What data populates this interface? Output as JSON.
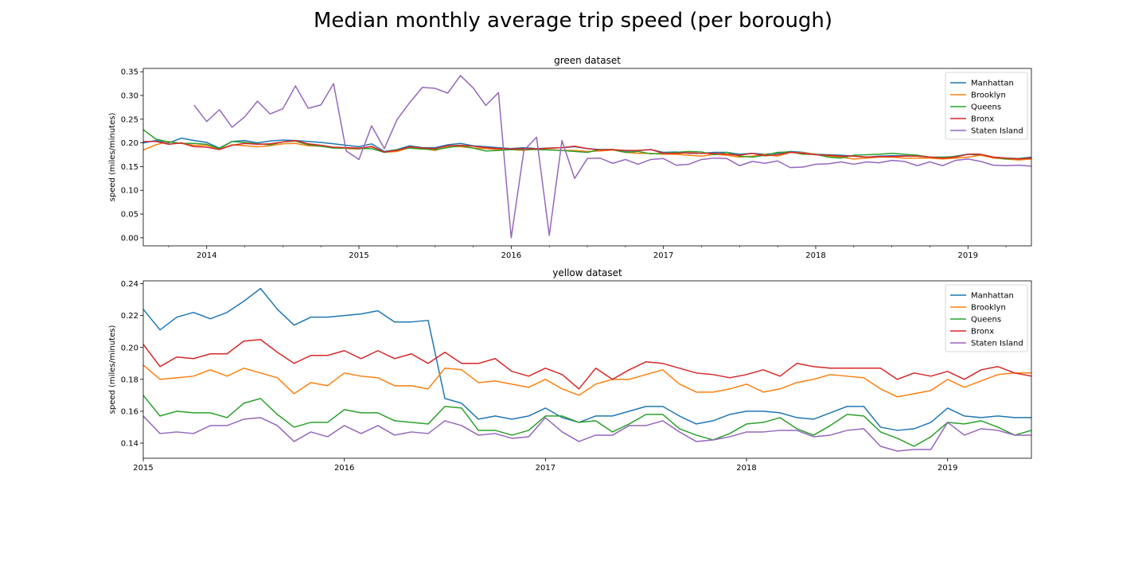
{
  "figure_title": "Median monthly average trip speed (per borough)",
  "colors": {
    "Manhattan": "#1f77b4",
    "Brooklyn": "#ff7f0e",
    "Queens": "#2ca02c",
    "Bronx": "#d62728",
    "Staten Island": "#9467bd"
  },
  "chart_data": [
    {
      "type": "line",
      "title": "green dataset",
      "xlabel": "",
      "ylabel": "speed (miles/minutes)",
      "x_start": "2013-08",
      "xlim": [
        "2013-08",
        "2019-06"
      ],
      "ylim": [
        -0.017,
        0.357
      ],
      "yticks": [
        "0.00",
        "0.05",
        "0.10",
        "0.15",
        "0.20",
        "0.25",
        "0.30",
        "0.35"
      ],
      "xticks": [
        "2014",
        "2015",
        "2016",
        "2017",
        "2018",
        "2019"
      ],
      "grid": false,
      "legend": "top-right",
      "series": [
        {
          "name": "Manhattan",
          "values": [
            0.2,
            0.205,
            0.2,
            0.21,
            0.205,
            0.201,
            0.189,
            0.203,
            0.205,
            0.2,
            0.204,
            0.206,
            0.205,
            0.203,
            0.201,
            0.198,
            0.195,
            0.192,
            0.198,
            0.182,
            0.186,
            0.194,
            0.19,
            0.19,
            0.196,
            0.199,
            0.194,
            0.192,
            0.19,
            0.188,
            0.19,
            0.188,
            0.189,
            0.19,
            0.192,
            0.188,
            0.186,
            0.186,
            0.183,
            0.184,
            0.186,
            0.18,
            0.181,
            0.178,
            0.178,
            0.18,
            0.18,
            0.176,
            0.178,
            0.176,
            0.178,
            0.182,
            0.18,
            0.176,
            0.175,
            0.174,
            0.172,
            0.17,
            0.172,
            0.173,
            0.173,
            0.172,
            0.17,
            0.168,
            0.172,
            0.176,
            0.174,
            0.17,
            0.168,
            0.167,
            0.17,
            0.17,
            0.176,
            0.174,
            0.17,
            0.167,
            0.163
          ]
        },
        {
          "name": "Brooklyn",
          "values": [
            0.185,
            0.196,
            0.203,
            0.199,
            0.195,
            0.195,
            0.187,
            0.196,
            0.194,
            0.192,
            0.194,
            0.198,
            0.199,
            0.194,
            0.193,
            0.19,
            0.188,
            0.187,
            0.193,
            0.18,
            0.182,
            0.19,
            0.188,
            0.184,
            0.192,
            0.192,
            0.189,
            0.188,
            0.186,
            0.186,
            0.184,
            0.188,
            0.186,
            0.184,
            0.184,
            0.182,
            0.183,
            0.185,
            0.18,
            0.178,
            0.178,
            0.176,
            0.176,
            0.174,
            0.172,
            0.176,
            0.174,
            0.17,
            0.172,
            0.176,
            0.172,
            0.18,
            0.179,
            0.176,
            0.172,
            0.17,
            0.166,
            0.168,
            0.17,
            0.17,
            0.168,
            0.168,
            0.168,
            0.166,
            0.168,
            0.17,
            0.174,
            0.168,
            0.166,
            0.164,
            0.166,
            0.165,
            0.167,
            0.163,
            0.162,
            0.16,
            0.155,
            0.155,
            0.158
          ]
        },
        {
          "name": "Queens",
          "values": [
            0.228,
            0.208,
            0.202,
            0.199,
            0.199,
            0.197,
            0.188,
            0.203,
            0.201,
            0.198,
            0.196,
            0.202,
            0.204,
            0.196,
            0.193,
            0.189,
            0.189,
            0.188,
            0.188,
            0.18,
            0.186,
            0.189,
            0.187,
            0.186,
            0.19,
            0.194,
            0.189,
            0.183,
            0.184,
            0.186,
            0.186,
            0.186,
            0.185,
            0.184,
            0.182,
            0.18,
            0.186,
            0.186,
            0.18,
            0.182,
            0.177,
            0.178,
            0.18,
            0.182,
            0.181,
            0.175,
            0.18,
            0.172,
            0.17,
            0.174,
            0.18,
            0.181,
            0.176,
            0.176,
            0.17,
            0.168,
            0.174,
            0.175,
            0.176,
            0.178,
            0.176,
            0.174,
            0.17,
            0.17,
            0.171,
            0.176,
            0.176,
            0.17,
            0.166,
            0.167,
            0.168,
            0.17,
            0.166,
            0.168,
            0.17,
            0.168,
            0.167,
            0.166,
            0.165
          ]
        },
        {
          "name": "Bronx",
          "values": [
            0.203,
            0.203,
            0.197,
            0.2,
            0.192,
            0.191,
            0.186,
            0.195,
            0.199,
            0.197,
            0.198,
            0.202,
            0.205,
            0.198,
            0.195,
            0.191,
            0.19,
            0.189,
            0.192,
            0.181,
            0.184,
            0.192,
            0.189,
            0.188,
            0.194,
            0.195,
            0.193,
            0.19,
            0.188,
            0.187,
            0.188,
            0.187,
            0.189,
            0.19,
            0.193,
            0.188,
            0.185,
            0.186,
            0.184,
            0.184,
            0.186,
            0.178,
            0.178,
            0.179,
            0.178,
            0.178,
            0.176,
            0.174,
            0.178,
            0.173,
            0.175,
            0.18,
            0.178,
            0.175,
            0.174,
            0.172,
            0.172,
            0.17,
            0.171,
            0.171,
            0.172,
            0.172,
            0.17,
            0.168,
            0.17,
            0.176,
            0.176,
            0.17,
            0.168,
            0.166,
            0.168,
            0.168,
            0.172,
            0.17,
            0.168,
            0.167,
            0.165,
            0.163,
            0.165
          ]
        },
        {
          "name": "Staten Island",
          "values": [
            null,
            null,
            null,
            null,
            0.28,
            0.245,
            0.27,
            0.233,
            0.255,
            0.288,
            0.261,
            0.272,
            0.32,
            0.273,
            0.28,
            0.325,
            0.183,
            0.165,
            0.236,
            0.188,
            0.249,
            0.285,
            0.317,
            0.315,
            0.305,
            0.342,
            0.316,
            0.279,
            0.306,
            0.0,
            0.184,
            0.212,
            0.005,
            0.205,
            0.125,
            0.167,
            0.168,
            0.157,
            0.165,
            0.155,
            0.165,
            0.167,
            0.153,
            0.155,
            0.165,
            0.168,
            0.167,
            0.152,
            0.161,
            0.157,
            0.162,
            0.148,
            0.149,
            0.155,
            0.156,
            0.16,
            0.155,
            0.16,
            0.158,
            0.163,
            0.161,
            0.152,
            0.16,
            0.152,
            0.163,
            0.166,
            0.161,
            0.153,
            0.152,
            0.153,
            0.151
          ]
        }
      ]
    },
    {
      "type": "line",
      "title": "yellow dataset",
      "xlabel": "",
      "ylabel": "speed (miles/minutes)",
      "x_start": "2015-01",
      "xlim": [
        "2015-01",
        "2019-06"
      ],
      "ylim": [
        0.1305,
        0.2418
      ],
      "yticks": [
        "0.14",
        "0.16",
        "0.18",
        "0.20",
        "0.22",
        "0.24"
      ],
      "xticks": [
        "2015",
        "2016",
        "2017",
        "2018",
        "2019"
      ],
      "grid": false,
      "legend": "top-right",
      "series": [
        {
          "name": "Manhattan",
          "values": [
            0.224,
            0.211,
            0.219,
            0.222,
            0.218,
            0.222,
            0.229,
            0.237,
            0.224,
            0.214,
            0.219,
            0.219,
            0.22,
            0.221,
            0.223,
            0.216,
            0.216,
            0.217,
            0.168,
            0.165,
            0.155,
            0.157,
            0.155,
            0.157,
            0.162,
            0.156,
            0.153,
            0.157,
            0.157,
            0.16,
            0.163,
            0.163,
            0.157,
            0.152,
            0.154,
            0.158,
            0.16,
            0.16,
            0.159,
            0.156,
            0.155,
            0.159,
            0.163,
            0.163,
            0.15,
            0.148,
            0.149,
            0.153,
            0.162,
            0.157,
            0.156,
            0.157,
            0.156,
            0.156
          ]
        },
        {
          "name": "Brooklyn",
          "values": [
            0.189,
            0.18,
            0.181,
            0.182,
            0.186,
            0.182,
            0.187,
            0.184,
            0.181,
            0.171,
            0.178,
            0.176,
            0.184,
            0.182,
            0.181,
            0.176,
            0.176,
            0.174,
            0.187,
            0.186,
            0.178,
            0.179,
            0.177,
            0.175,
            0.18,
            0.174,
            0.17,
            0.177,
            0.18,
            0.18,
            0.183,
            0.186,
            0.177,
            0.172,
            0.172,
            0.174,
            0.177,
            0.172,
            0.174,
            0.178,
            0.18,
            0.183,
            0.182,
            0.181,
            0.174,
            0.169,
            0.171,
            0.173,
            0.18,
            0.175,
            0.179,
            0.183,
            0.184,
            0.184
          ]
        },
        {
          "name": "Queens",
          "values": [
            0.17,
            0.157,
            0.16,
            0.159,
            0.159,
            0.156,
            0.165,
            0.168,
            0.158,
            0.15,
            0.153,
            0.153,
            0.161,
            0.159,
            0.159,
            0.154,
            0.153,
            0.152,
            0.163,
            0.162,
            0.148,
            0.148,
            0.145,
            0.148,
            0.157,
            0.157,
            0.153,
            0.154,
            0.147,
            0.152,
            0.158,
            0.158,
            0.149,
            0.145,
            0.142,
            0.146,
            0.152,
            0.153,
            0.156,
            0.149,
            0.145,
            0.151,
            0.158,
            0.157,
            0.147,
            0.143,
            0.138,
            0.144,
            0.153,
            0.152,
            0.154,
            0.15,
            0.145,
            0.148
          ]
        },
        {
          "name": "Bronx",
          "values": [
            0.202,
            0.188,
            0.194,
            0.193,
            0.196,
            0.196,
            0.204,
            0.205,
            0.197,
            0.19,
            0.195,
            0.195,
            0.198,
            0.193,
            0.198,
            0.193,
            0.196,
            0.19,
            0.197,
            0.19,
            0.19,
            0.193,
            0.185,
            0.182,
            0.187,
            0.183,
            0.174,
            0.187,
            0.18,
            0.186,
            0.191,
            0.19,
            0.187,
            0.184,
            0.183,
            0.181,
            0.183,
            0.186,
            0.182,
            0.19,
            0.188,
            0.187,
            0.187,
            0.187,
            0.187,
            0.18,
            0.184,
            0.182,
            0.185,
            0.18,
            0.186,
            0.188,
            0.184,
            0.182
          ]
        },
        {
          "name": "Staten Island",
          "values": [
            0.157,
            0.146,
            0.147,
            0.146,
            0.151,
            0.151,
            0.155,
            0.156,
            0.151,
            0.141,
            0.147,
            0.144,
            0.151,
            0.146,
            0.151,
            0.145,
            0.147,
            0.146,
            0.154,
            0.151,
            0.145,
            0.146,
            0.143,
            0.144,
            0.156,
            0.147,
            0.141,
            0.145,
            0.145,
            0.151,
            0.151,
            0.154,
            0.147,
            0.141,
            0.142,
            0.144,
            0.147,
            0.147,
            0.148,
            0.148,
            0.144,
            0.145,
            0.148,
            0.149,
            0.138,
            0.135,
            0.136,
            0.136,
            0.153,
            0.145,
            0.149,
            0.148,
            0.145,
            0.145
          ]
        }
      ]
    }
  ]
}
